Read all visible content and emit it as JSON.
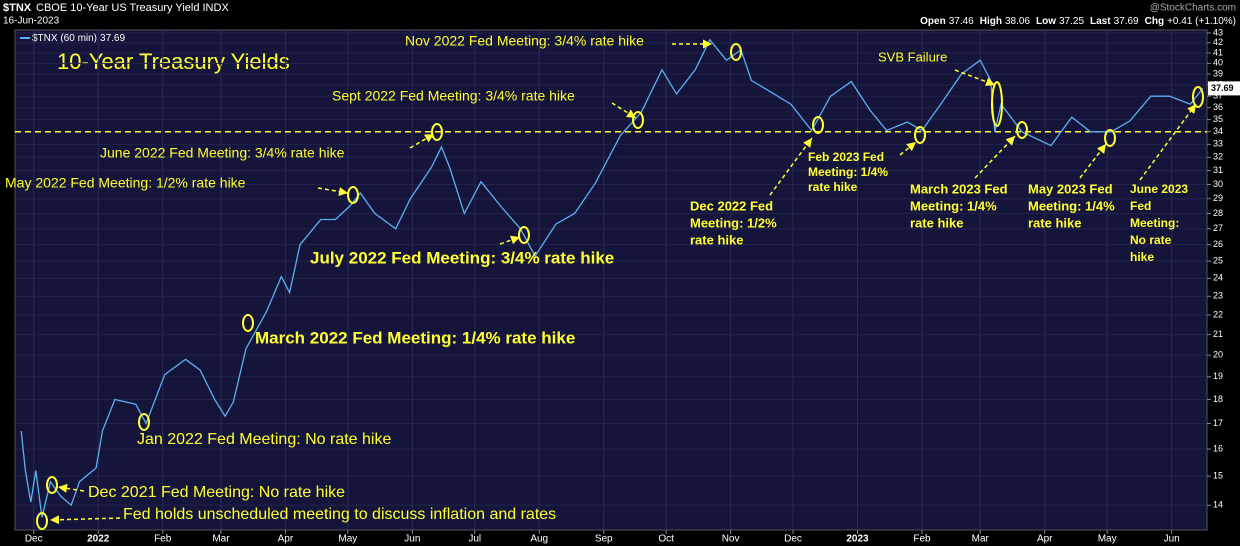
{
  "chart_data": {
    "type": "line",
    "symbol": "$TNX",
    "name": "CBOE 10-Year US Treasury Yield INDX",
    "date": "16-Jun-2023",
    "quote": [
      {
        "label": "Open",
        "value": 37.46
      },
      {
        "label": "High",
        "value": 38.06
      },
      {
        "label": "Low",
        "value": 37.25
      },
      {
        "label": "Last",
        "value": 37.69
      },
      {
        "label": "Chg",
        "value": "+0.41 (+1.10%)"
      }
    ],
    "credit": "@StockCharts.com",
    "title": "10-Year Treasury Yields",
    "log_scale": true,
    "grid": true,
    "ylim": [
      13.2,
      43.3
    ],
    "yticks": [
      14,
      15,
      16,
      17,
      18,
      19,
      20,
      21,
      22,
      23,
      24,
      25,
      26,
      27,
      28,
      29,
      30,
      31,
      32,
      33,
      34,
      35,
      36,
      37,
      38,
      39,
      40,
      41,
      42,
      43
    ],
    "xlim": [
      -9,
      564
    ],
    "xticks": [
      {
        "value": 0,
        "label": "Dec"
      },
      {
        "value": 31,
        "label": "2022"
      },
      {
        "value": 62,
        "label": "Feb"
      },
      {
        "value": 90,
        "label": "Mar"
      },
      {
        "value": 121,
        "label": "Apr"
      },
      {
        "value": 151,
        "label": "May"
      },
      {
        "value": 182,
        "label": "Jun"
      },
      {
        "value": 212,
        "label": "Jul"
      },
      {
        "value": 243,
        "label": "Aug"
      },
      {
        "value": 274,
        "label": "Sep"
      },
      {
        "value": 304,
        "label": "Oct"
      },
      {
        "value": 335,
        "label": "Nov"
      },
      {
        "value": 365,
        "label": "Dec"
      },
      {
        "value": 396,
        "label": "2023"
      },
      {
        "value": 427,
        "label": "Feb"
      },
      {
        "value": 455,
        "label": "Mar"
      },
      {
        "value": 486,
        "label": "Apr"
      },
      {
        "value": 516,
        "label": "May"
      },
      {
        "value": 547,
        "label": "Jun"
      }
    ],
    "reference_line": 34,
    "x": [
      -6,
      -4,
      -1.4,
      1,
      4,
      8,
      13,
      18,
      22,
      30,
      33,
      39,
      49,
      54,
      63,
      73,
      80,
      87,
      92,
      96,
      102,
      112,
      119,
      123,
      128,
      138,
      145,
      152,
      157,
      164,
      174,
      181,
      191,
      196,
      200,
      207,
      215,
      225,
      234,
      241,
      251,
      260,
      270,
      282,
      292,
      302,
      309,
      318,
      325,
      333,
      340,
      345,
      355,
      364,
      374,
      383,
      393,
      402,
      410,
      420,
      427,
      436,
      446,
      455,
      460,
      462,
      465,
      475,
      489,
      499,
      508,
      518,
      527,
      537,
      546,
      556,
      562
    ],
    "series": [
      {
        "name": "$TNX (60 min)",
        "color": "#5ab0f0",
        "last_label": "37.69",
        "values": [
          16.7,
          15.2,
          14.1,
          15.2,
          13.6,
          14.8,
          14.3,
          14.0,
          14.8,
          15.3,
          16.7,
          18.0,
          17.8,
          17.0,
          19.1,
          19.8,
          19.3,
          18.0,
          17.3,
          17.9,
          20.3,
          22.2,
          24.1,
          23.2,
          26.0,
          27.6,
          27.6,
          28.5,
          29.4,
          28.0,
          27.0,
          29.0,
          31.2,
          32.8,
          31.2,
          28.0,
          30.2,
          28.4,
          27.0,
          25.3,
          27.3,
          28.0,
          30.1,
          33.7,
          35.6,
          39.4,
          37.2,
          39.4,
          42.3,
          40.3,
          41.3,
          38.4,
          37.3,
          36.3,
          34.1,
          37.0,
          38.3,
          35.8,
          34.1,
          34.8,
          34.1,
          36.3,
          39.0,
          40.3,
          38.4,
          34.0,
          36.3,
          34.0,
          32.9,
          35.2,
          34.0,
          34.0,
          34.9,
          37.0,
          37.0,
          36.3,
          37.69
        ]
      }
    ],
    "annotations": [
      {
        "lines": [
          "Nov 2022 Fed Meeting: 3/4% rate hike"
        ]
      },
      {
        "lines": [
          "SVB Failure"
        ]
      },
      {
        "lines": [
          "Sept 2022 Fed Meeting: 3/4% rate hike"
        ]
      },
      {
        "lines": [
          "June 2022 Fed Meeting: 3/4% rate hike"
        ]
      },
      {
        "lines": [
          "May 2022 Fed Meeting: 1/2% rate hike"
        ]
      },
      {
        "lines": [
          "July 2022 Fed Meeting: 3/4% rate hike"
        ]
      },
      {
        "lines": [
          "March 2022 Fed Meeting: 1/4% rate hike"
        ]
      },
      {
        "lines": [
          "Jan 2022 Fed Meeting: No rate hike"
        ]
      },
      {
        "lines": [
          "Dec 2021 Fed Meeting: No rate hike"
        ]
      },
      {
        "lines": [
          "Fed holds unscheduled meeting to discuss inflation and rates"
        ]
      },
      {
        "lines": [
          "Dec 2022 Fed",
          "Meeting: 1/2%",
          "rate hike"
        ]
      },
      {
        "lines": [
          "Feb 2023 Fed",
          "Meeting: 1/4%",
          "rate hike"
        ]
      },
      {
        "lines": [
          "March 2023 Fed",
          "Meeting: 1/4%",
          "rate hike"
        ]
      },
      {
        "lines": [
          "May 2023 Fed",
          "Meeting: 1/4%",
          "rate hike"
        ]
      },
      {
        "lines": [
          "June 2023",
          "Fed",
          "Meeting:",
          "No rate",
          "hike"
        ]
      }
    ]
  }
}
